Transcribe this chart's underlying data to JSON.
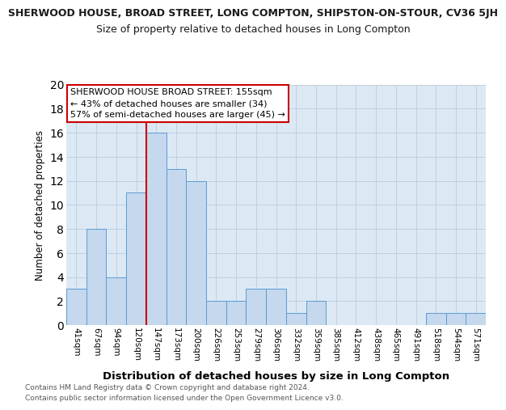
{
  "title": "SHERWOOD HOUSE, BROAD STREET, LONG COMPTON, SHIPSTON-ON-STOUR, CV36 5JH",
  "subtitle": "Size of property relative to detached houses in Long Compton",
  "xlabel": "Distribution of detached houses by size in Long Compton",
  "ylabel": "Number of detached properties",
  "categories": [
    "41sqm",
    "67sqm",
    "94sqm",
    "120sqm",
    "147sqm",
    "173sqm",
    "200sqm",
    "226sqm",
    "253sqm",
    "279sqm",
    "306sqm",
    "332sqm",
    "359sqm",
    "385sqm",
    "412sqm",
    "438sqm",
    "465sqm",
    "491sqm",
    "518sqm",
    "544sqm",
    "571sqm"
  ],
  "values": [
    3,
    8,
    4,
    11,
    16,
    13,
    12,
    2,
    2,
    3,
    3,
    1,
    2,
    0,
    0,
    0,
    0,
    0,
    1,
    1,
    1
  ],
  "bar_color": "#c5d8ed",
  "bar_edge_color": "#5b9bd5",
  "red_line_x": 4.5,
  "red_line_color": "#cc0000",
  "annotation_title": "SHERWOOD HOUSE BROAD STREET: 155sqm",
  "annotation_line1": "← 43% of detached houses are smaller (34)",
  "annotation_line2": "57% of semi-detached houses are larger (45) →",
  "annotation_box_color": "#ffffff",
  "annotation_box_edge_color": "#cc0000",
  "ylim": [
    0,
    20
  ],
  "yticks": [
    0,
    2,
    4,
    6,
    8,
    10,
    12,
    14,
    16,
    18,
    20
  ],
  "bg_color": "#ffffff",
  "axes_bg_color": "#dce9f5",
  "grid_color": "#c0cfe0",
  "footer_line1": "Contains HM Land Registry data © Crown copyright and database right 2024.",
  "footer_line2": "Contains public sector information licensed under the Open Government Licence v3.0."
}
